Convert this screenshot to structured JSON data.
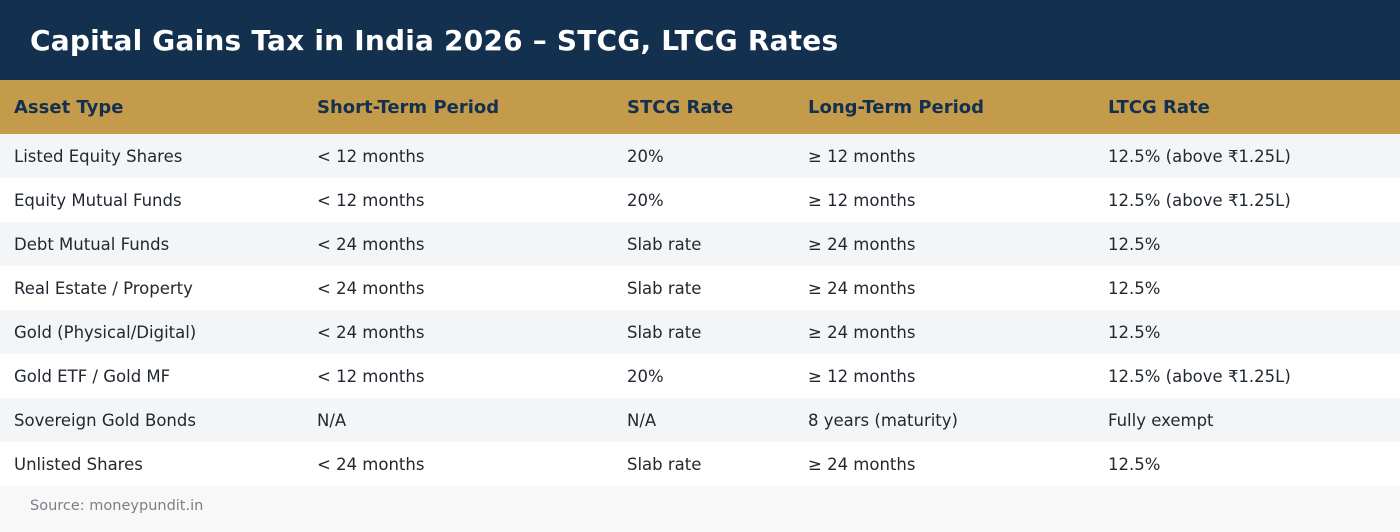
{
  "title": "Capital Gains Tax in India 2026 – STCG, LTCG Rates",
  "table": {
    "headers": [
      "Asset Type",
      "Short-Term Period",
      "STCG Rate",
      "Long-Term Period",
      "LTCG Rate"
    ],
    "rows": [
      [
        "Listed Equity Shares",
        "< 12 months",
        "20%",
        "≥ 12 months",
        "12.5% (above ₹1.25L)"
      ],
      [
        "Equity Mutual Funds",
        "< 12 months",
        "20%",
        "≥ 12 months",
        "12.5% (above ₹1.25L)"
      ],
      [
        "Debt Mutual Funds",
        "< 24 months",
        "Slab rate",
        "≥ 24 months",
        "12.5%"
      ],
      [
        "Real Estate / Property",
        "< 24 months",
        "Slab rate",
        "≥ 24 months",
        "12.5%"
      ],
      [
        "Gold (Physical/Digital)",
        "< 24 months",
        "Slab rate",
        "≥ 24 months",
        "12.5%"
      ],
      [
        "Gold ETF / Gold MF",
        "< 12 months",
        "20%",
        "≥ 12 months",
        "12.5% (above ₹1.25L)"
      ],
      [
        "Sovereign Gold Bonds",
        "N/A",
        "N/A",
        "8 years (maturity)",
        "Fully exempt"
      ],
      [
        "Unlisted Shares",
        "< 24 months",
        "Slab rate",
        "≥ 24 months",
        "12.5%"
      ]
    ]
  },
  "source": "Source: moneypundit.in",
  "colors": {
    "title_background": "#14304f",
    "header_background": "#c49a4b",
    "header_text": "#14304f",
    "row_alt": "#f4f5f7"
  }
}
